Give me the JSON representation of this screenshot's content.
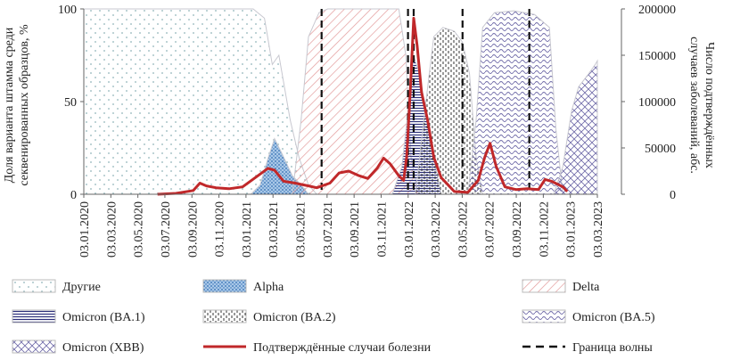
{
  "chart_data": {
    "type": "area",
    "x_tick_labels": [
      "03.01.2020",
      "03.03.2020",
      "03.05.2020",
      "03.07.2020",
      "03.09.2020",
      "03.11.2020",
      "03.01.2021",
      "03.03.2021",
      "03.05.2021",
      "03.07.2021",
      "03.09.2021",
      "03.11.2021",
      "03.01.2022",
      "03.03.2022",
      "03.05.2022",
      "03.07.2022",
      "03.09.2022",
      "03.11.2022",
      "03.01.2023",
      "03.03.2023"
    ],
    "y_left": {
      "label_line1": "Доля варианта штамма среди",
      "label_line2": "секвенированных образцов, %",
      "ticks": [
        "0",
        "50",
        "100"
      ],
      "range": [
        0,
        100
      ]
    },
    "y_right": {
      "label_line1": "Число подтверждённых",
      "label_line2": "случаев заболеваний, абс.",
      "ticks": [
        "0",
        "50000",
        "100000",
        "150000",
        "200000"
      ],
      "range": [
        0,
        200000
      ]
    },
    "x_range": [
      "2020-01-03",
      "2023-03-25"
    ],
    "series": [
      {
        "name": "Другие",
        "pattern": "dots",
        "color": "#8fb3b8",
        "points": [
          [
            "2020-01-03",
            100
          ],
          [
            "2021-01-25",
            100
          ],
          [
            "2021-02-20",
            95
          ],
          [
            "2021-03-10",
            70
          ],
          [
            "2021-03-25",
            75
          ],
          [
            "2021-04-20",
            40
          ],
          [
            "2021-05-10",
            20
          ],
          [
            "2021-06-01",
            5
          ],
          [
            "2021-06-20",
            0
          ]
        ]
      },
      {
        "name": "Alpha",
        "pattern": "blue-stipple",
        "color": "#3f7bbd",
        "points": [
          [
            "2021-01-20",
            0
          ],
          [
            "2021-02-10",
            5
          ],
          [
            "2021-03-01",
            20
          ],
          [
            "2021-03-15",
            30
          ],
          [
            "2021-04-01",
            22
          ],
          [
            "2021-04-25",
            10
          ],
          [
            "2021-05-15",
            5
          ],
          [
            "2021-06-01",
            0
          ]
        ]
      },
      {
        "name": "Delta",
        "pattern": "hatch",
        "color": "#e8a0a0",
        "points": [
          [
            "2021-04-25",
            0
          ],
          [
            "2021-05-15",
            40
          ],
          [
            "2021-06-01",
            85
          ],
          [
            "2021-06-25",
            98
          ],
          [
            "2021-07-15",
            100
          ],
          [
            "2021-12-25",
            100
          ],
          [
            "2022-01-10",
            75
          ],
          [
            "2022-01-22",
            20
          ],
          [
            "2022-02-05",
            3
          ],
          [
            "2022-02-20",
            0
          ]
        ]
      },
      {
        "name": "Omicron (BA.1)",
        "pattern": "horizontal-lines",
        "color": "#2c2f7a",
        "points": [
          [
            "2021-12-10",
            0
          ],
          [
            "2022-01-01",
            15
          ],
          [
            "2022-01-15",
            45
          ],
          [
            "2022-01-28",
            75
          ],
          [
            "2022-02-10",
            65
          ],
          [
            "2022-02-25",
            45
          ],
          [
            "2022-03-15",
            20
          ],
          [
            "2022-04-01",
            0
          ]
        ]
      },
      {
        "name": "Omicron (BA.2)",
        "pattern": "vertical-dots",
        "color": "#333333",
        "points": [
          [
            "2022-02-01",
            0
          ],
          [
            "2022-02-25",
            50
          ],
          [
            "2022-03-15",
            85
          ],
          [
            "2022-04-05",
            90
          ],
          [
            "2022-05-01",
            88
          ],
          [
            "2022-05-20",
            82
          ],
          [
            "2022-06-05",
            65
          ],
          [
            "2022-06-20",
            20
          ],
          [
            "2022-07-05",
            0
          ]
        ]
      },
      {
        "name": "Omicron (BA.5)",
        "pattern": "waves",
        "color": "#6f6aa8",
        "points": [
          [
            "2022-06-01",
            0
          ],
          [
            "2022-06-20",
            40
          ],
          [
            "2022-07-05",
            90
          ],
          [
            "2022-08-01",
            98
          ],
          [
            "2022-09-15",
            99
          ],
          [
            "2022-11-01",
            97
          ],
          [
            "2022-12-05",
            90
          ],
          [
            "2022-12-20",
            35
          ],
          [
            "2023-01-05",
            0
          ]
        ]
      },
      {
        "name": "Omicron (XBB)",
        "pattern": "crosshatch",
        "color": "#6f6aa8",
        "points": [
          [
            "2022-12-15",
            0
          ],
          [
            "2023-01-05",
            15
          ],
          [
            "2023-01-25",
            45
          ],
          [
            "2023-02-10",
            58
          ],
          [
            "2023-03-05",
            65
          ],
          [
            "2023-03-20",
            70
          ],
          [
            "2023-03-25",
            72
          ]
        ]
      }
    ],
    "cases": {
      "name": "Подтверждённые случаи болезни",
      "color": "#c0282a",
      "points": [
        [
          "2020-06-20",
          0
        ],
        [
          "2020-08-01",
          1000
        ],
        [
          "2020-09-10",
          4000
        ],
        [
          "2020-09-25",
          12000
        ],
        [
          "2020-10-10",
          9000
        ],
        [
          "2020-11-01",
          7000
        ],
        [
          "2020-12-01",
          6000
        ],
        [
          "2021-01-01",
          8000
        ],
        [
          "2021-02-05",
          20000
        ],
        [
          "2021-02-28",
          28000
        ],
        [
          "2021-03-15",
          26000
        ],
        [
          "2021-04-05",
          14000
        ],
        [
          "2021-05-01",
          12000
        ],
        [
          "2021-06-01",
          9000
        ],
        [
          "2021-06-20",
          7000
        ],
        [
          "2021-07-20",
          12000
        ],
        [
          "2021-08-10",
          23000
        ],
        [
          "2021-09-01",
          25000
        ],
        [
          "2021-09-25",
          20000
        ],
        [
          "2021-10-15",
          17000
        ],
        [
          "2021-11-05",
          28000
        ],
        [
          "2021-11-20",
          39000
        ],
        [
          "2021-12-05",
          33000
        ],
        [
          "2021-12-25",
          20000
        ],
        [
          "2022-01-05",
          15000
        ],
        [
          "2022-01-12",
          40000
        ],
        [
          "2022-01-20",
          110000
        ],
        [
          "2022-01-28",
          190000
        ],
        [
          "2022-02-05",
          160000
        ],
        [
          "2022-02-15",
          110000
        ],
        [
          "2022-03-01",
          80000
        ],
        [
          "2022-03-15",
          40000
        ],
        [
          "2022-04-01",
          18000
        ],
        [
          "2022-05-01",
          3000
        ],
        [
          "2022-06-01",
          2000
        ],
        [
          "2022-06-25",
          15000
        ],
        [
          "2022-07-10",
          40000
        ],
        [
          "2022-07-22",
          55000
        ],
        [
          "2022-08-05",
          30000
        ],
        [
          "2022-08-25",
          8000
        ],
        [
          "2022-09-20",
          5000
        ],
        [
          "2022-10-15",
          6000
        ],
        [
          "2022-11-10",
          5000
        ],
        [
          "2022-11-25",
          16000
        ],
        [
          "2022-12-10",
          14000
        ],
        [
          "2023-01-05",
          8000
        ],
        [
          "2023-01-15",
          3000
        ]
      ]
    },
    "wave_boundaries": {
      "name": "Граница волны",
      "dates": [
        "2021-07-01",
        "2022-01-15",
        "2022-01-28",
        "2022-05-20",
        "2022-10-20"
      ]
    },
    "legend_placement": "bottom",
    "grid": false
  }
}
